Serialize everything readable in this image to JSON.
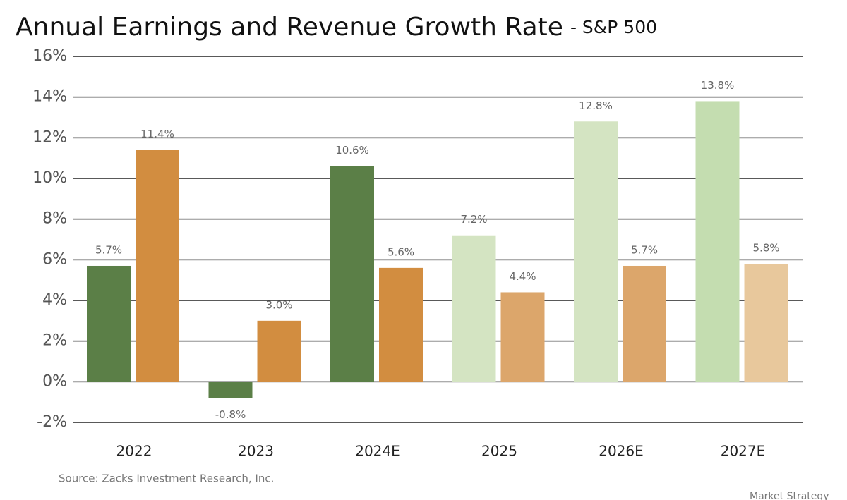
{
  "chart_data": {
    "type": "bar",
    "title": "Annual Earnings and Revenue Growth Rate",
    "subtitle": "- S&P 500",
    "source": "Source: Zacks Investment Research, Inc.",
    "footer": "Market Strategy",
    "categories": [
      "2022",
      "2023",
      "2024E",
      "2025",
      "2026E",
      "2027E"
    ],
    "series": [
      {
        "colors": [
          "#5b7f47",
          "#5b7f47",
          "#5b7f47",
          "#d4e4c2",
          "#d4e4c2",
          "#c4ddb0"
        ],
        "values": [
          5.7,
          -0.8,
          10.6,
          7.2,
          12.8,
          13.8
        ],
        "value_labels": [
          "5.7%",
          "-0.8%",
          "10.6%",
          "7.2%",
          "12.8%",
          "13.8%"
        ]
      },
      {
        "colors": [
          "#d28d40",
          "#d28d40",
          "#d28d40",
          "#dca66b",
          "#dca66b",
          "#e8c89c"
        ],
        "values": [
          11.4,
          3.0,
          5.6,
          4.4,
          5.7,
          5.8
        ],
        "value_labels": [
          "11.4%",
          "3.0%",
          "5.6%",
          "4.4%",
          "5.7%",
          "5.8%"
        ]
      }
    ],
    "ylim": [
      -2,
      16
    ],
    "yticks": [
      {
        "value": -2,
        "label": "-2%"
      },
      {
        "value": 0,
        "label": "0%"
      },
      {
        "value": 2,
        "label": "2%"
      },
      {
        "value": 4,
        "label": "4%"
      },
      {
        "value": 6,
        "label": "6%"
      },
      {
        "value": 8,
        "label": "8%"
      },
      {
        "value": 10,
        "label": "10%"
      },
      {
        "value": 12,
        "label": "12%"
      },
      {
        "value": 14,
        "label": "14%"
      },
      {
        "value": 16,
        "label": "16%"
      }
    ],
    "grid": true
  }
}
